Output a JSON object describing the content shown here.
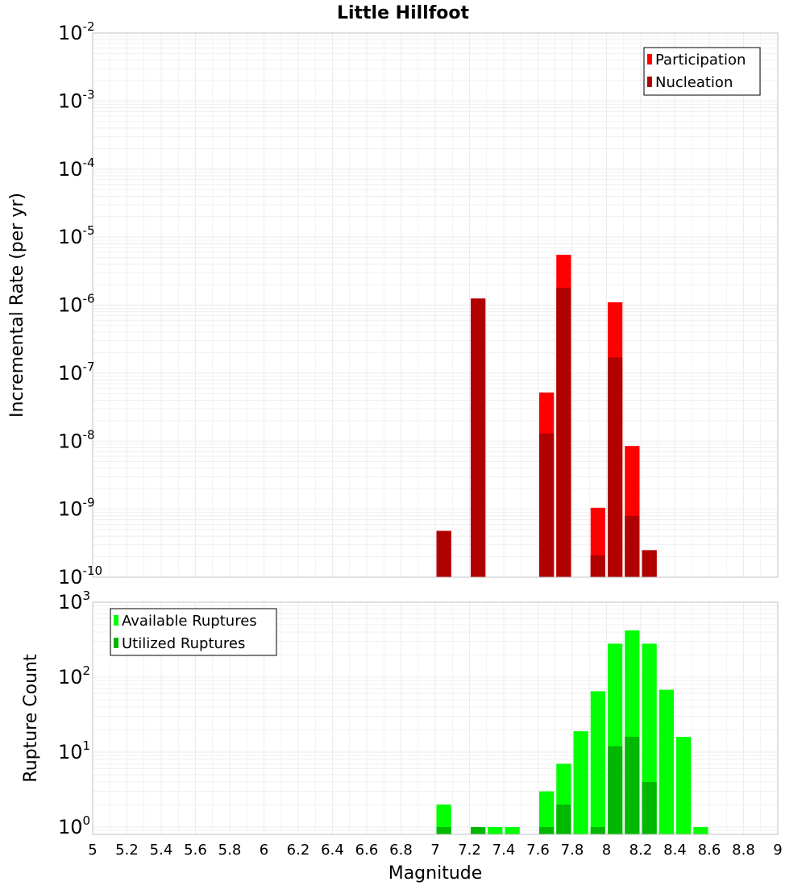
{
  "title": "Little Hillfoot",
  "colors": {
    "participation": "#ff0000",
    "nucleation": "#b00000",
    "available": "#00ff00",
    "utilized": "#00b800",
    "grid": "#ececec",
    "frame": "#c0c0c0"
  },
  "x_axis": {
    "label": "Magnitude",
    "range": [
      5,
      9
    ],
    "ticks": [
      5,
      5.2,
      5.4,
      5.6,
      5.8,
      6,
      6.2,
      6.4,
      6.6,
      6.8,
      7,
      7.2,
      7.4,
      7.6,
      7.8,
      8,
      8.2,
      8.4,
      8.6,
      8.8,
      9
    ],
    "tick_labels": [
      "5",
      "5.2",
      "5.4",
      "5.6",
      "5.8",
      "6",
      "6.2",
      "6.4",
      "6.6",
      "6.8",
      "7",
      "7.2",
      "7.4",
      "7.6",
      "7.8",
      "8",
      "8.2",
      "8.4",
      "8.6",
      "8.8",
      "9"
    ]
  },
  "chart_data": [
    {
      "type": "bar",
      "title": "Little Hillfoot",
      "xlabel": "Magnitude",
      "ylabel": "Incremental Rate (per yr)",
      "yscale": "log",
      "ylim": [
        1e-10,
        0.01
      ],
      "y_ticks": [
        {
          "value": 1e-10,
          "base": "10",
          "exp": "-10"
        },
        {
          "value": 1e-09,
          "base": "10",
          "exp": "-9"
        },
        {
          "value": 1e-08,
          "base": "10",
          "exp": "-8"
        },
        {
          "value": 1e-07,
          "base": "10",
          "exp": "-7"
        },
        {
          "value": 1e-06,
          "base": "10",
          "exp": "-6"
        },
        {
          "value": 1e-05,
          "base": "10",
          "exp": "-5"
        },
        {
          "value": 0.0001,
          "base": "10",
          "exp": "-4"
        },
        {
          "value": 0.001,
          "base": "10",
          "exp": "-3"
        },
        {
          "value": 0.01,
          "base": "10",
          "exp": "-2"
        }
      ],
      "legend_position": "top-right",
      "bar_width": 0.1,
      "series": [
        {
          "name": "Participation",
          "color": "#ff0000",
          "x": [
            7.05,
            7.25,
            7.65,
            7.75,
            7.95,
            8.05,
            8.15,
            8.25
          ],
          "values": [
            4.8e-10,
            1.25e-06,
            5.2e-08,
            5.5e-06,
            1.05e-09,
            1.1e-06,
            8.5e-09,
            2.5e-10
          ]
        },
        {
          "name": "Nucleation",
          "color": "#b00000",
          "x": [
            7.05,
            7.25,
            7.65,
            7.75,
            7.95,
            8.05,
            8.15,
            8.25
          ],
          "values": [
            4.8e-10,
            1.25e-06,
            1.3e-08,
            1.8e-06,
            2.1e-10,
            1.7e-07,
            8e-10,
            2.5e-10
          ]
        }
      ]
    },
    {
      "type": "bar",
      "xlabel": "Magnitude",
      "ylabel": "Rupture Count",
      "yscale": "log",
      "ylim": [
        0.8,
        1000
      ],
      "y_ticks": [
        {
          "value": 1,
          "base": "10",
          "exp": "0"
        },
        {
          "value": 10,
          "base": "10",
          "exp": "1"
        },
        {
          "value": 100,
          "base": "10",
          "exp": "2"
        },
        {
          "value": 1000,
          "base": "10",
          "exp": "3"
        }
      ],
      "legend_position": "top-left",
      "bar_width": 0.1,
      "series": [
        {
          "name": "Available Ruptures",
          "color": "#00ff00",
          "x": [
            7.05,
            7.25,
            7.35,
            7.45,
            7.65,
            7.75,
            7.85,
            7.95,
            8.05,
            8.15,
            8.25,
            8.35,
            8.45,
            8.55
          ],
          "values": [
            2,
            1,
            1,
            1,
            3,
            7,
            19,
            65,
            280,
            420,
            280,
            68,
            16,
            1
          ]
        },
        {
          "name": "Utilized Ruptures",
          "color": "#00b800",
          "x": [
            7.05,
            7.25,
            7.65,
            7.75,
            7.95,
            8.05,
            8.15,
            8.25
          ],
          "values": [
            1,
            1,
            1,
            2,
            1,
            12,
            16,
            4
          ]
        }
      ]
    }
  ]
}
